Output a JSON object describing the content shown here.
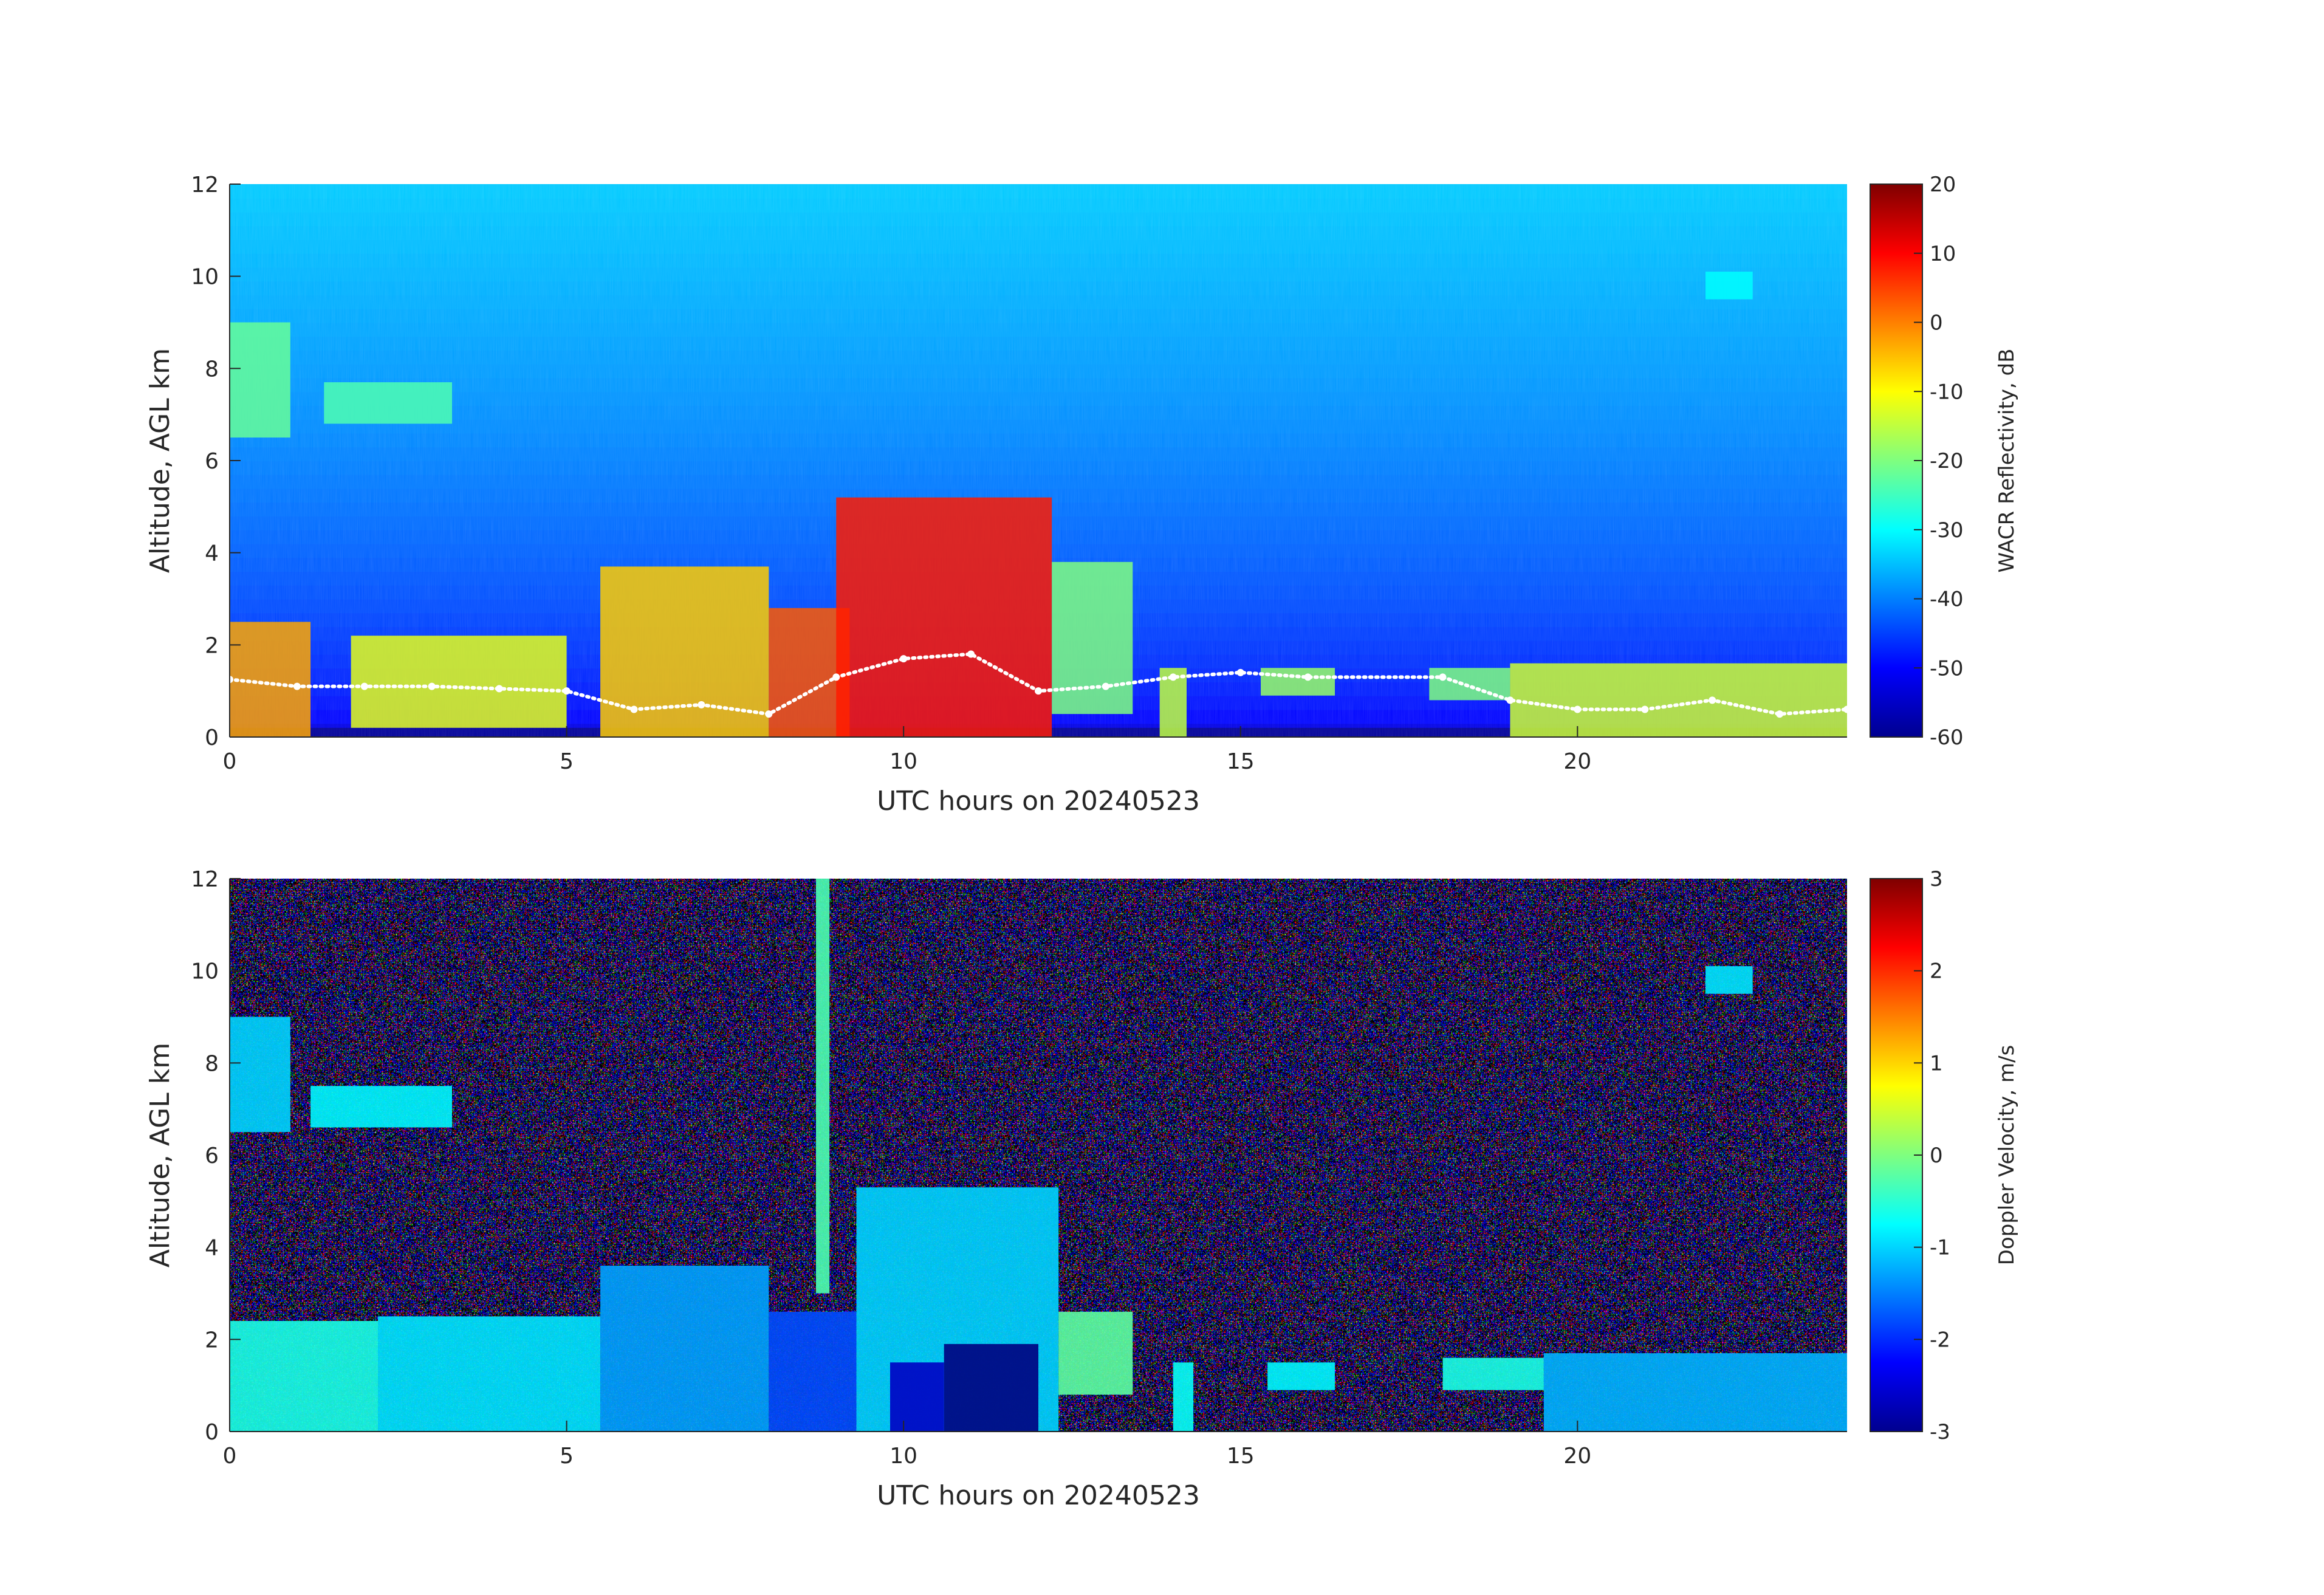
{
  "figure": {
    "background": "#ffffff"
  },
  "chart_data": [
    {
      "type": "heatmap",
      "panel": "top",
      "xlabel": "UTC hours on 20240523",
      "ylabel": "Altitude, AGL km",
      "xlim": [
        0,
        24
      ],
      "ylim": [
        0,
        12
      ],
      "xticks": [
        0,
        5,
        10,
        15,
        20
      ],
      "yticks": [
        0,
        2,
        4,
        6,
        8,
        10,
        12
      ],
      "colorbar": {
        "label": "WACR Reflectivity, dB",
        "range": [
          -60,
          20
        ],
        "ticks": [
          20,
          10,
          0,
          -10,
          -20,
          -30,
          -40,
          -50,
          -60
        ],
        "colormap": "jet"
      },
      "background_field_dB": {
        "near_surface": -52,
        "top_of_domain": -34
      },
      "cloud_features": [
        {
          "x_range": [
            0.0,
            1.2
          ],
          "y_range": [
            0.0,
            2.5
          ],
          "value_dB": -3
        },
        {
          "x_range": [
            0.0,
            0.9
          ],
          "y_range": [
            6.5,
            9.0
          ],
          "value_dB": -22
        },
        {
          "x_range": [
            1.4,
            3.3
          ],
          "y_range": [
            6.8,
            7.7
          ],
          "value_dB": -24
        },
        {
          "x_range": [
            1.8,
            5.0
          ],
          "y_range": [
            0.2,
            2.2
          ],
          "value_dB": -12
        },
        {
          "x_range": [
            5.5,
            8.0
          ],
          "y_range": [
            0.0,
            3.7
          ],
          "value_dB": -6
        },
        {
          "x_range": [
            8.0,
            9.2
          ],
          "y_range": [
            0.0,
            2.8
          ],
          "value_dB": 3
        },
        {
          "x_range": [
            9.0,
            12.2
          ],
          "y_range": [
            0.0,
            5.2
          ],
          "value_dB": 8
        },
        {
          "x_range": [
            12.2,
            13.4
          ],
          "y_range": [
            0.5,
            3.8
          ],
          "value_dB": -20
        },
        {
          "x_range": [
            13.8,
            14.2
          ],
          "y_range": [
            0.0,
            1.5
          ],
          "value_dB": -15
        },
        {
          "x_range": [
            15.3,
            16.4
          ],
          "y_range": [
            0.9,
            1.5
          ],
          "value_dB": -18
        },
        {
          "x_range": [
            17.8,
            19.0
          ],
          "y_range": [
            0.8,
            1.5
          ],
          "value_dB": -20
        },
        {
          "x_range": [
            19.0,
            24.0
          ],
          "y_range": [
            0.0,
            1.6
          ],
          "value_dB": -14
        },
        {
          "x_range": [
            21.9,
            22.6
          ],
          "y_range": [
            9.5,
            10.1
          ],
          "value_dB": -30
        }
      ],
      "overlay_points": {
        "color": "#ffffff",
        "x": [
          0.0,
          1.0,
          2.0,
          3.0,
          4.0,
          5.0,
          6.0,
          7.0,
          8.0,
          9.0,
          10.0,
          11.0,
          12.0,
          13.0,
          14.0,
          15.0,
          16.0,
          18.0,
          19.0,
          20.0,
          21.0,
          22.0,
          23.0,
          24.0
        ],
        "y": [
          1.25,
          1.1,
          1.1,
          1.1,
          1.05,
          1.0,
          0.6,
          0.7,
          0.5,
          1.3,
          1.7,
          1.8,
          1.0,
          1.1,
          1.3,
          1.4,
          1.3,
          1.3,
          0.8,
          0.6,
          0.6,
          0.8,
          0.5,
          0.6
        ]
      }
    },
    {
      "type": "heatmap",
      "panel": "bottom",
      "xlabel": "UTC hours on 20240523",
      "ylabel": "Altitude, AGL km",
      "xlim": [
        0,
        24
      ],
      "ylim": [
        0,
        12
      ],
      "xticks": [
        0,
        5,
        10,
        15,
        20
      ],
      "yticks": [
        0,
        2,
        4,
        6,
        8,
        10,
        12
      ],
      "colorbar": {
        "label": "Doppler Velocity, m/s",
        "range": [
          -3,
          3
        ],
        "ticks": [
          3,
          2,
          1,
          0,
          -1,
          -2,
          -3
        ],
        "colormap": "jet"
      },
      "background_field": "noise spanning full range",
      "cloud_features": [
        {
          "x_range": [
            0.0,
            0.9
          ],
          "y_range": [
            6.5,
            9.0
          ],
          "value_ms": -1.0
        },
        {
          "x_range": [
            1.2,
            3.3
          ],
          "y_range": [
            6.6,
            7.5
          ],
          "value_ms": -0.8
        },
        {
          "x_range": [
            0.0,
            2.2
          ],
          "y_range": [
            0.0,
            2.4
          ],
          "value_ms": -0.6
        },
        {
          "x_range": [
            2.2,
            5.5
          ],
          "y_range": [
            0.0,
            2.5
          ],
          "value_ms": -0.9
        },
        {
          "x_range": [
            5.5,
            8.0
          ],
          "y_range": [
            0.0,
            3.6
          ],
          "value_ms": -1.3
        },
        {
          "x_range": [
            8.0,
            9.3
          ],
          "y_range": [
            0.0,
            2.6
          ],
          "value_ms": -1.8
        },
        {
          "x_range": [
            8.7,
            8.9
          ],
          "y_range": [
            3.0,
            12.0
          ],
          "value_ms": -0.3
        },
        {
          "x_range": [
            9.3,
            12.3
          ],
          "y_range": [
            0.0,
            5.3
          ],
          "value_ms": -1.0
        },
        {
          "x_range": [
            10.6,
            12.0
          ],
          "y_range": [
            0.0,
            1.9
          ],
          "value_ms": -3.0
        },
        {
          "x_range": [
            9.8,
            10.6
          ],
          "y_range": [
            0.0,
            1.5
          ],
          "value_ms": -2.6
        },
        {
          "x_range": [
            12.3,
            13.4
          ],
          "y_range": [
            0.8,
            2.6
          ],
          "value_ms": -0.2
        },
        {
          "x_range": [
            14.0,
            14.3
          ],
          "y_range": [
            0.0,
            1.5
          ],
          "value_ms": -0.7
        },
        {
          "x_range": [
            15.4,
            16.4
          ],
          "y_range": [
            0.9,
            1.5
          ],
          "value_ms": -0.8
        },
        {
          "x_range": [
            18.0,
            19.5
          ],
          "y_range": [
            0.9,
            1.6
          ],
          "value_ms": -0.6
        },
        {
          "x_range": [
            19.5,
            24.0
          ],
          "y_range": [
            0.0,
            1.7
          ],
          "value_ms": -1.2
        },
        {
          "x_range": [
            21.9,
            22.6
          ],
          "y_range": [
            9.5,
            10.1
          ],
          "value_ms": -0.9
        }
      ]
    }
  ]
}
